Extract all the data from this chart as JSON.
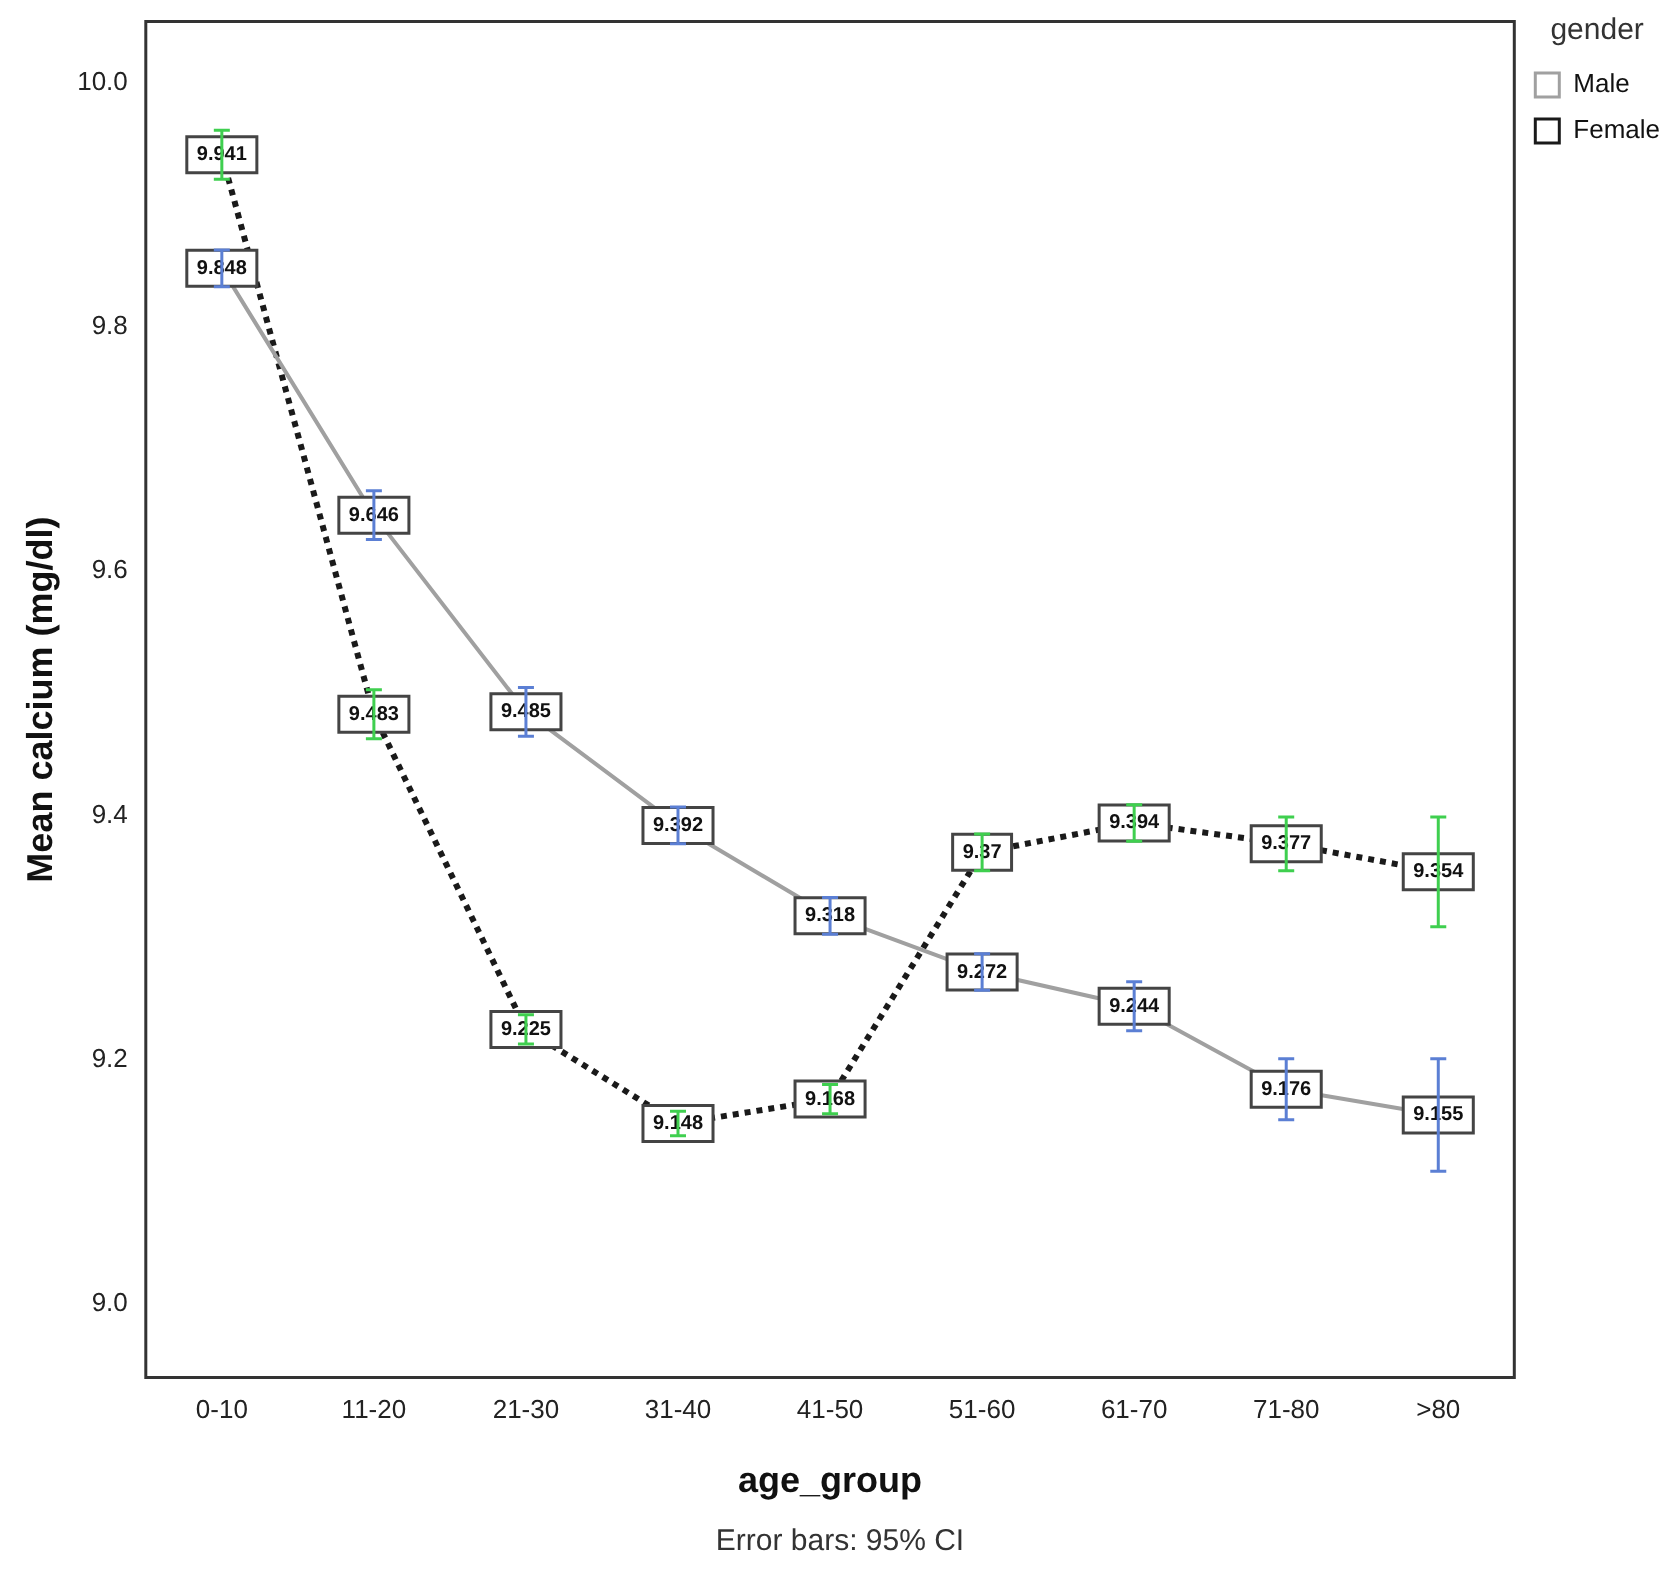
{
  "chart_data": {
    "type": "line",
    "xlabel": "age_group",
    "ylabel": "Mean calcium (mg/dl)",
    "legend_title": "gender",
    "legend": "right",
    "grid": false,
    "marker": "square",
    "data_labels": true,
    "categories": [
      "0-10",
      "11-20",
      "21-30",
      "31-40",
      "41-50",
      "51-60",
      "61-70",
      "71-80",
      ">80"
    ],
    "ylim": [
      8.94,
      10.05
    ],
    "yticks": [
      {
        "value": 9.0,
        "label": "9.0"
      },
      {
        "value": 9.2,
        "label": "9.2"
      },
      {
        "value": 9.4,
        "label": "9.4"
      },
      {
        "value": 9.6,
        "label": "9.6"
      },
      {
        "value": 9.8,
        "label": "9.8"
      },
      {
        "value": 10.0,
        "label": "10.0"
      }
    ],
    "series": [
      {
        "name": "Male",
        "color": "#a0a0a0",
        "line_style": "solid",
        "values": [
          9.848,
          9.646,
          9.485,
          9.392,
          9.318,
          9.272,
          9.244,
          9.176,
          9.155
        ],
        "errors": [
          0.015,
          0.02,
          0.02,
          0.015,
          0.015,
          0.015,
          0.02,
          0.025,
          0.046
        ]
      },
      {
        "name": "Female",
        "color": "#1a1a1a",
        "line_style": "dotted",
        "values": [
          9.941,
          9.483,
          9.225,
          9.148,
          9.168,
          9.37,
          9.394,
          9.377,
          9.354
        ],
        "errors": [
          0.02,
          0.02,
          0.012,
          0.01,
          0.012,
          0.015,
          0.015,
          0.022,
          0.045
        ]
      }
    ],
    "annotations": [
      "Error bars: 95% CI"
    ]
  }
}
